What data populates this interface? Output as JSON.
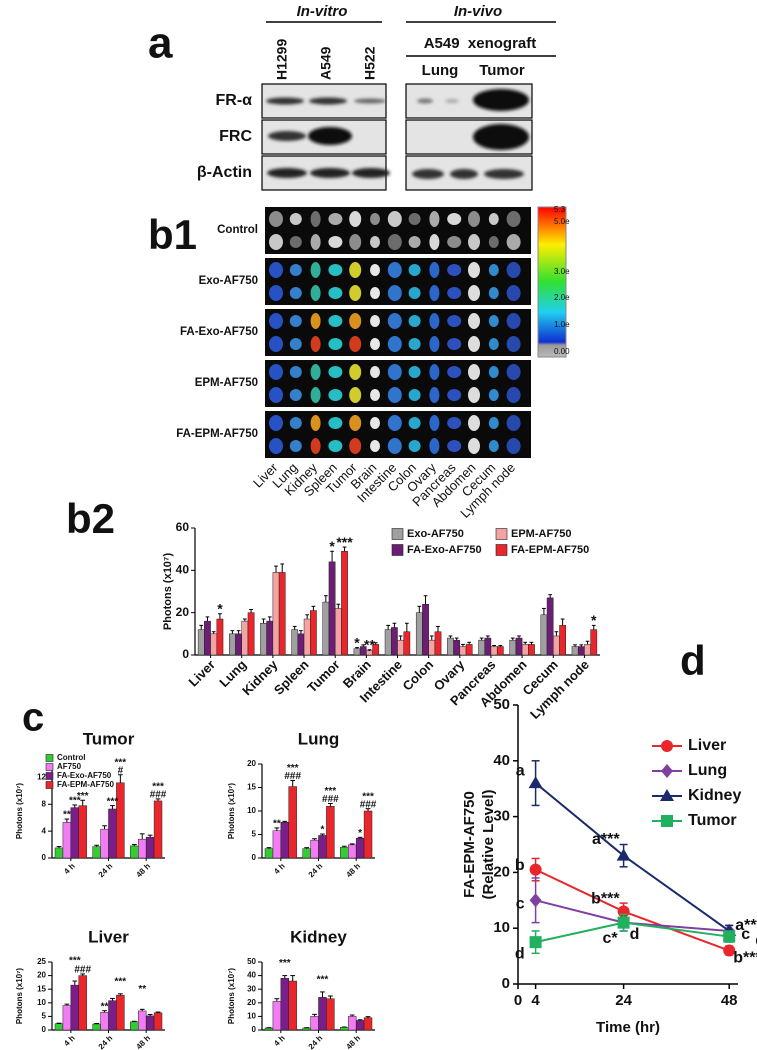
{
  "panel_labels": [
    "a",
    "b1",
    "b2",
    "c",
    "d"
  ],
  "panel_a": {
    "groups": [
      "In-vitro",
      "In-vivo"
    ],
    "lanes": [
      "H1299",
      "A549",
      "H522"
    ],
    "xenograft": "A549  xenograft",
    "xenograft_lanes": [
      "Lung",
      "Tumor"
    ],
    "rows": [
      "FR-α",
      "FRC",
      "β-Actin"
    ]
  },
  "panel_b1": {
    "rows": [
      "Control",
      "Exo-AF750",
      "FA-Exo-AF750",
      "EPM-AF750",
      "FA-EPM-AF750"
    ],
    "organs": [
      "Liver",
      "Lung",
      "Kidney",
      "Spleen",
      "Tumor",
      "Brain",
      "Intestine",
      "Colon",
      "Ovary",
      "Pancreas",
      "Abdomen",
      "Cecum",
      "Lymph node"
    ],
    "colorbar_labels": [
      "5.3",
      "5.0e",
      "3.0e",
      "2.0e",
      "1.0e",
      "0.00"
    ]
  },
  "chart_data": [
    {
      "type": "bar",
      "ylabel": "Photons (x10⁷)",
      "categories": [
        "Liver",
        "Lung",
        "Kidney",
        "Spleen",
        "Tumor",
        "Brain",
        "Intestine",
        "Colon",
        "Ovary",
        "Pancreas",
        "Abdomen",
        "Cecum",
        "Lymph node"
      ],
      "series": [
        {
          "name": "Exo-AF750",
          "color": "#a0a0a0",
          "values": [
            12,
            10,
            15,
            12,
            25,
            3,
            12,
            20,
            8,
            7,
            7,
            19,
            4
          ],
          "errors": [
            2,
            1.5,
            2,
            1.5,
            3,
            0.5,
            2,
            3,
            1,
            1,
            1,
            3,
            0.8
          ]
        },
        {
          "name": "FA-Exo-AF750",
          "color": "#6b1e73",
          "values": [
            16,
            10,
            16,
            10,
            44,
            4,
            13,
            24,
            7,
            8,
            8,
            27,
            4
          ],
          "errors": [
            2,
            1.5,
            2,
            1.5,
            5,
            0.8,
            2,
            4,
            1,
            1,
            1,
            1.5,
            0.8
          ]
        },
        {
          "name": "EPM-AF750",
          "color": "#f4a3a3",
          "values": [
            10,
            16,
            39,
            17,
            22,
            2,
            7,
            7,
            4,
            4,
            5,
            9,
            5
          ],
          "errors": [
            1,
            1,
            3,
            2,
            2,
            0.5,
            2,
            2,
            1,
            0.5,
            1,
            2,
            1.5
          ]
        },
        {
          "name": "FA-EPM-AF750",
          "color": "#e8262b",
          "values": [
            17,
            20,
            39,
            21,
            49,
            5,
            11,
            11,
            5,
            4,
            5,
            14,
            12
          ],
          "errors": [
            2.5,
            1.5,
            4,
            2,
            2,
            0.8,
            4,
            2.5,
            1,
            0.5,
            1,
            3,
            2
          ]
        }
      ],
      "ylim": [
        0,
        60
      ],
      "yticks": [
        0,
        20,
        40,
        60
      ],
      "annotations": [
        "*",
        "*",
        "***",
        "*",
        "**",
        "*"
      ]
    },
    {
      "type": "bar",
      "title": "Tumor",
      "ylabel": "Photons (x10⁷)",
      "categories": [
        "4 h",
        "24 h",
        "48 h"
      ],
      "series": [
        {
          "name": "Control",
          "color": "#33cc33",
          "values": [
            1.5,
            1.7,
            1.8
          ],
          "errors": [
            0.2,
            0.2,
            0.2
          ]
        },
        {
          "name": "AF750",
          "color": "#f27cf2",
          "values": [
            5.3,
            4.3,
            2.8
          ],
          "errors": [
            0.5,
            0.5,
            0.8
          ]
        },
        {
          "name": "FA-Exo-AF750",
          "color": "#7a1f8a",
          "values": [
            7.5,
            7.3,
            3.1
          ],
          "errors": [
            0.4,
            0.5,
            0.3
          ]
        },
        {
          "name": "FA-EPM-AF750",
          "color": "#e8262b",
          "values": [
            7.8,
            11.2,
            8.5
          ],
          "errors": [
            0.8,
            1.2,
            0.3
          ]
        }
      ],
      "ylim": [
        0,
        14
      ],
      "yticks": [
        0,
        4,
        8,
        12
      ],
      "annotations": [
        "**",
        "***",
        "***",
        "***",
        "***",
        "#",
        "***",
        "###"
      ]
    },
    {
      "type": "bar",
      "title": "Lung",
      "ylabel": "Photons (x10⁷)",
      "categories": [
        "4 h",
        "24 h",
        "48 h"
      ],
      "series": [
        {
          "color": "#33cc33",
          "values": [
            2,
            2,
            2.3
          ],
          "errors": [
            0.2,
            0.2,
            0.2
          ]
        },
        {
          "color": "#f27cf2",
          "values": [
            5.8,
            3.8,
            2.8
          ],
          "errors": [
            0.6,
            0.3,
            0.2
          ]
        },
        {
          "color": "#7a1f8a",
          "values": [
            7.6,
            4.8,
            4.2
          ],
          "errors": [
            0.2,
            0.3,
            0.2
          ]
        },
        {
          "color": "#e8262b",
          "values": [
            15.2,
            11,
            10
          ],
          "errors": [
            1.3,
            0.6,
            0.5
          ]
        }
      ],
      "ylim": [
        0,
        20
      ],
      "yticks": [
        0,
        5,
        10,
        15,
        20
      ],
      "annotations": [
        "**",
        "***",
        "###",
        "*",
        "***",
        "###",
        "*",
        "***",
        "###"
      ]
    },
    {
      "type": "bar",
      "title": "Liver",
      "ylabel": "Photons (x10⁷)",
      "categories": [
        "4 h",
        "24 h",
        "48 h"
      ],
      "series": [
        {
          "color": "#33cc33",
          "values": [
            2.3,
            2.2,
            3
          ],
          "errors": [
            0.2,
            0.2,
            0.2
          ]
        },
        {
          "color": "#f27cf2",
          "values": [
            9,
            6.5,
            7
          ],
          "errors": [
            0.5,
            0.6,
            0.6
          ]
        },
        {
          "color": "#7a1f8a",
          "values": [
            16.5,
            10.8,
            5.2
          ],
          "errors": [
            1.5,
            0.8,
            0.5
          ]
        },
        {
          "color": "#e8262b",
          "values": [
            20,
            12.8,
            6.3
          ],
          "errors": [
            0.6,
            0.5,
            0.3
          ]
        }
      ],
      "ylim": [
        0,
        25
      ],
      "yticks": [
        0,
        5,
        10,
        15,
        20,
        25
      ],
      "annotations": [
        "***",
        "###",
        "**",
        "***",
        "**"
      ]
    },
    {
      "type": "bar",
      "title": "Kidney",
      "ylabel": "Photons (x10⁷)",
      "categories": [
        "4 h",
        "24 h",
        "48 h"
      ],
      "series": [
        {
          "color": "#33cc33",
          "values": [
            1.5,
            1.5,
            2
          ],
          "errors": [
            0.2,
            0.2,
            0.2
          ]
        },
        {
          "color": "#f27cf2",
          "values": [
            21,
            10,
            10
          ],
          "errors": [
            2,
            1.5,
            1
          ]
        },
        {
          "color": "#7a1f8a",
          "values": [
            38,
            24,
            7
          ],
          "errors": [
            2,
            4,
            0.5
          ]
        },
        {
          "color": "#e8262b",
          "values": [
            36,
            23,
            9
          ],
          "errors": [
            4,
            2,
            0.8
          ]
        }
      ],
      "ylim": [
        0,
        50
      ],
      "yticks": [
        0,
        10,
        20,
        30,
        40,
        50
      ],
      "annotations": [
        "***",
        "***"
      ]
    },
    {
      "type": "line",
      "xlabel": "Time (hr)",
      "ylabel": [
        "FA-EPM-AF750",
        "(Relative Level)"
      ],
      "x": [
        4,
        24,
        48
      ],
      "xlim": [
        0,
        50
      ],
      "xticks": [
        0,
        4,
        24,
        48
      ],
      "ylim": [
        0,
        50
      ],
      "yticks": [
        0,
        10,
        20,
        30,
        40,
        50
      ],
      "series": [
        {
          "name": "Liver",
          "color": "#e8262b",
          "marker": "circle",
          "values": [
            20.5,
            13,
            6
          ],
          "errors": [
            2,
            1.5,
            0.8
          ],
          "point_labels": [
            "b",
            "b***",
            "b***"
          ]
        },
        {
          "name": "Lung",
          "color": "#8040a0",
          "marker": "diamond",
          "values": [
            15,
            11,
            9.5
          ],
          "errors": [
            4,
            1.5,
            1
          ],
          "point_labels": [
            "c",
            "c*",
            "c"
          ]
        },
        {
          "name": "Kidney",
          "color": "#1a2a6a",
          "marker": "triangle",
          "values": [
            36,
            23,
            9.5
          ],
          "errors": [
            4,
            2,
            1
          ],
          "point_labels": [
            "a",
            "a***",
            "a***"
          ]
        },
        {
          "name": "Tumor",
          "color": "#20b060",
          "marker": "square",
          "values": [
            7.5,
            11,
            8.5
          ],
          "errors": [
            2,
            1.5,
            1
          ],
          "point_labels": [
            "d",
            "d",
            "d"
          ]
        }
      ]
    }
  ]
}
